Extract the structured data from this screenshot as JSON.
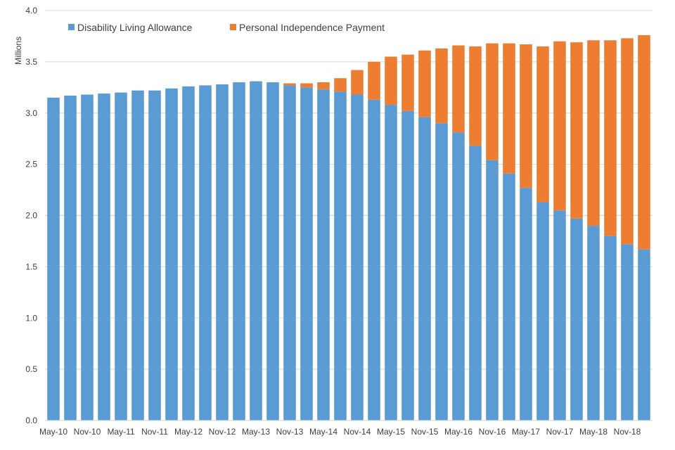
{
  "chart_data": {
    "type": "bar",
    "stacked": true,
    "title": "",
    "xlabel": "",
    "ylabel": "Millions",
    "ylim": [
      0,
      4.0
    ],
    "yticks": [
      "0.0",
      "0.5",
      "1.0",
      "1.5",
      "2.0",
      "2.5",
      "3.0",
      "3.5",
      "4.0"
    ],
    "grid": true,
    "legend_position": "top-left",
    "categories": [
      "May-10",
      "Aug-10",
      "Nov-10",
      "Feb-11",
      "May-11",
      "Aug-11",
      "Nov-11",
      "Feb-12",
      "May-12",
      "Aug-12",
      "Nov-12",
      "Feb-13",
      "May-13",
      "Aug-13",
      "Nov-13",
      "Feb-14",
      "May-14",
      "Aug-14",
      "Nov-14",
      "Feb-15",
      "May-15",
      "Aug-15",
      "Nov-15",
      "Feb-16",
      "May-16",
      "Aug-16",
      "Nov-16",
      "Feb-17",
      "May-17",
      "Aug-17",
      "Nov-17",
      "Feb-18",
      "May-18",
      "Aug-18",
      "Nov-18",
      "Feb-19"
    ],
    "category_labels": [
      "May-10",
      "",
      "Nov-10",
      "",
      "May-11",
      "",
      "Nov-11",
      "",
      "May-12",
      "",
      "Nov-12",
      "",
      "May-13",
      "",
      "Nov-13",
      "",
      "May-14",
      "",
      "Nov-14",
      "",
      "May-15",
      "",
      "Nov-15",
      "",
      "May-16",
      "",
      "Nov-16",
      "",
      "May-17",
      "",
      "Nov-17",
      "",
      "May-18",
      "",
      "Nov-18",
      ""
    ],
    "series": [
      {
        "name": "Disability Living Allowance",
        "color": "#5b9bd5",
        "values": [
          3.15,
          3.17,
          3.18,
          3.19,
          3.2,
          3.22,
          3.22,
          3.24,
          3.26,
          3.27,
          3.28,
          3.3,
          3.31,
          3.3,
          3.27,
          3.25,
          3.23,
          3.21,
          3.18,
          3.13,
          3.08,
          3.02,
          2.96,
          2.9,
          2.81,
          2.68,
          2.54,
          2.41,
          2.27,
          2.13,
          2.05,
          1.97,
          1.9,
          1.8,
          1.72,
          1.67
        ]
      },
      {
        "name": "Personal Independence Payment",
        "color": "#ed7d31",
        "values": [
          0,
          0,
          0,
          0,
          0,
          0,
          0,
          0,
          0,
          0,
          0,
          0,
          0,
          0,
          0.02,
          0.04,
          0.07,
          0.13,
          0.24,
          0.37,
          0.47,
          0.55,
          0.65,
          0.73,
          0.85,
          0.97,
          1.14,
          1.27,
          1.4,
          1.52,
          1.65,
          1.72,
          1.81,
          1.91,
          2.01,
          2.09
        ]
      }
    ]
  }
}
